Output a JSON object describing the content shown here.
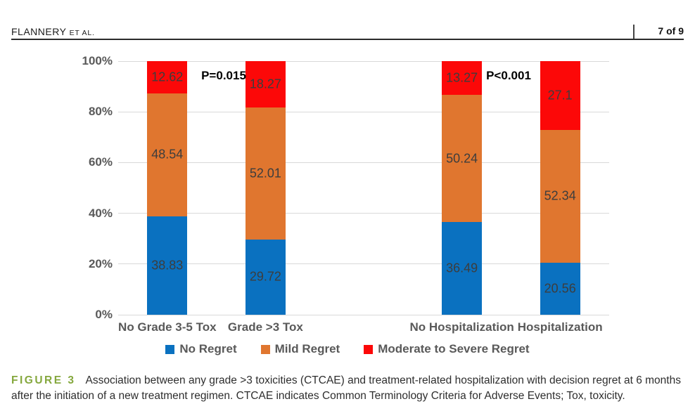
{
  "header": {
    "running_head_main": "FLANNERY",
    "running_head_suffix": "ET AL.",
    "page_number": "7 of 9"
  },
  "chart_data": {
    "type": "bar",
    "subtype": "stacked-percent-column",
    "categories": [
      "No Grade 3-5 Tox",
      "Grade >3 Tox",
      "No Hospitalization",
      "Hospitalization"
    ],
    "series": [
      {
        "name": "No Regret",
        "color": "#0a71c0",
        "values": [
          38.83,
          29.72,
          36.49,
          20.56
        ]
      },
      {
        "name": "Mild Regret",
        "color": "#e0762f",
        "values": [
          48.54,
          52.01,
          50.24,
          52.34
        ]
      },
      {
        "name": "Moderate to Severe Regret",
        "color": "#fc0808",
        "values": [
          12.62,
          18.27,
          13.27,
          27.1
        ]
      }
    ],
    "annotations": [
      {
        "text": "P=0.015"
      },
      {
        "text": "P<0.001"
      }
    ],
    "y_ticks": [
      "0%",
      "20%",
      "40%",
      "60%",
      "80%",
      "100%"
    ],
    "ylim": [
      0,
      100
    ],
    "grid": true,
    "legend_position": "bottom",
    "title": "",
    "xlabel": "",
    "ylabel": ""
  },
  "caption": {
    "label": "FIGURE 3",
    "text": "Association between any grade >3 toxicities (CTCAE) and treatment-related hospitalization with decision regret at 6 months after the initiation of a new treatment regimen. CTCAE indicates Common Terminology Criteria for Adverse Events; Tox, toxicity."
  }
}
